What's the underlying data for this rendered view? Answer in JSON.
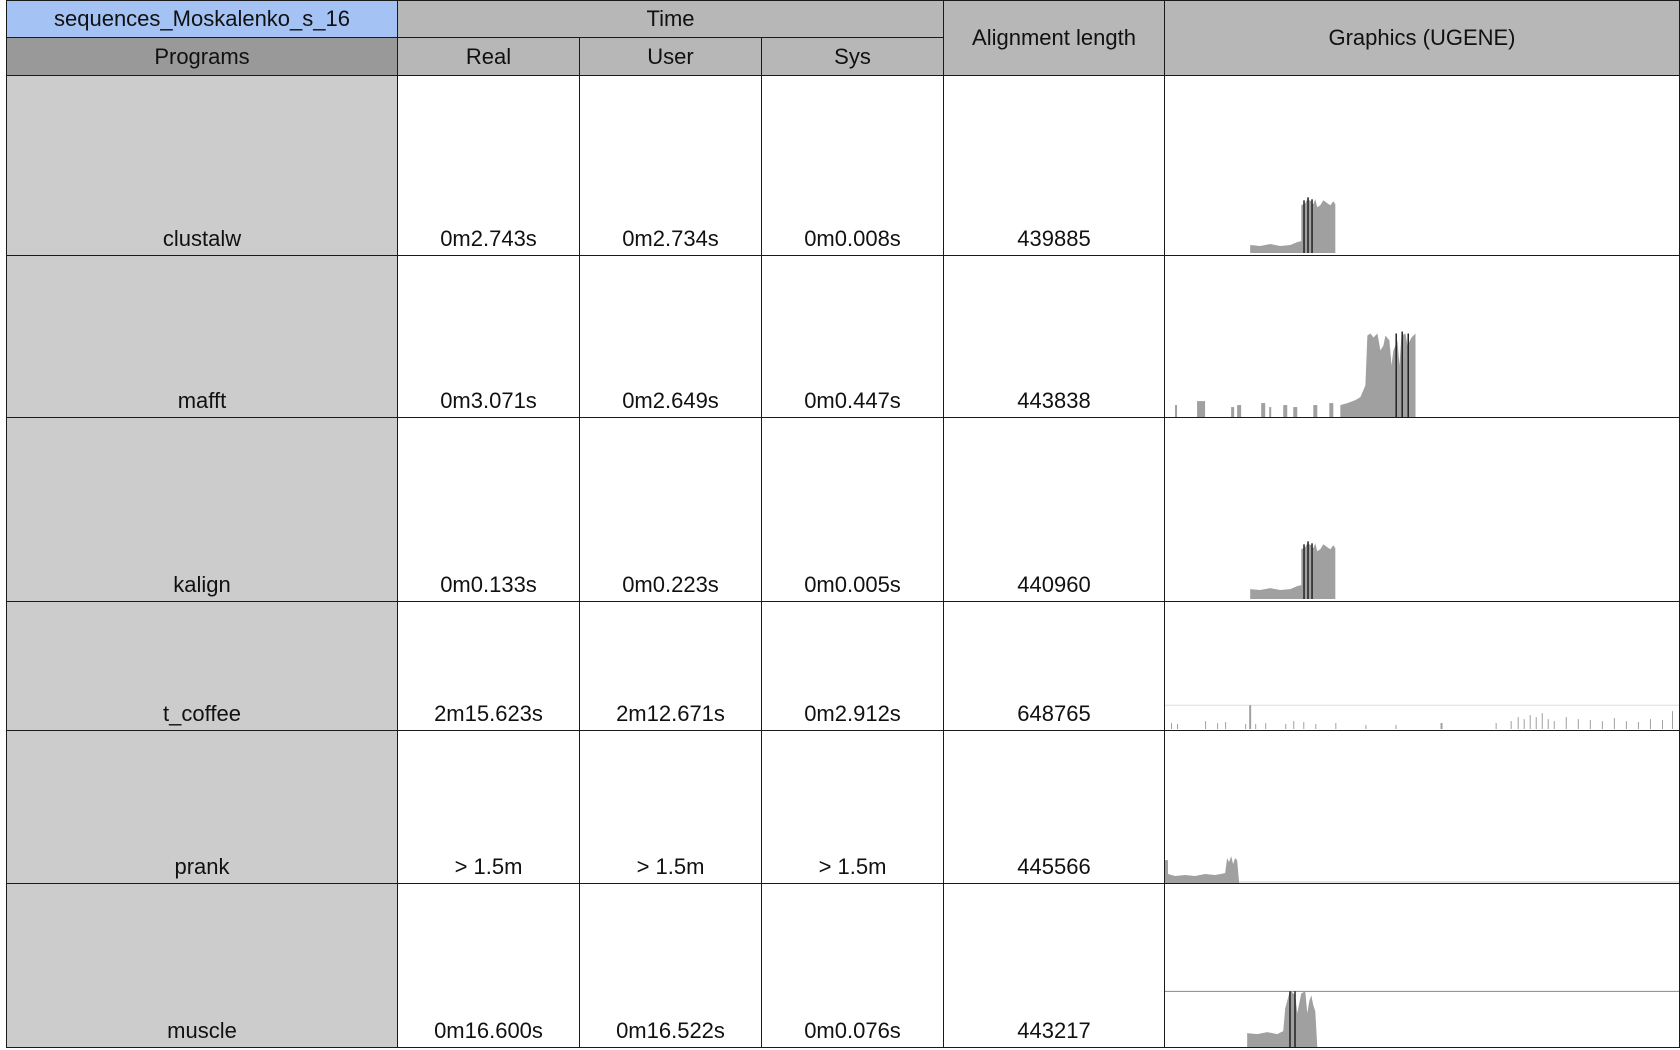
{
  "sheet": {
    "title_cell": "sequences_Moskalenko_s_16",
    "time_group_header": "Time",
    "columns": {
      "programs": "Programs",
      "real": "Real",
      "user": "User",
      "sys": "Sys",
      "alignment_length": "Alignment length",
      "graphics": "Graphics (UGENE)"
    },
    "rows": [
      {
        "program": "clustalw",
        "real": "0m2.743s",
        "user": "0m2.734s",
        "sys": "0m0.008s",
        "alignment_length": "439885",
        "graphic_icon": "ugene-alignment-profile-chart"
      },
      {
        "program": "mafft",
        "real": "0m3.071s",
        "user": "0m2.649s",
        "sys": "0m0.447s",
        "alignment_length": "443838",
        "graphic_icon": "ugene-alignment-profile-chart"
      },
      {
        "program": "kalign",
        "real": "0m0.133s",
        "user": "0m0.223s",
        "sys": "0m0.005s",
        "alignment_length": "440960",
        "graphic_icon": "ugene-alignment-profile-chart"
      },
      {
        "program": "t_coffee",
        "real": "2m15.623s",
        "user": "2m12.671s",
        "sys": "0m2.912s",
        "alignment_length": "648765",
        "graphic_icon": "ugene-alignment-profile-chart"
      },
      {
        "program": "prank",
        "real": "> 1.5m",
        "user": "> 1.5m",
        "sys": "> 1.5m",
        "alignment_length": "445566",
        "graphic_icon": "ugene-alignment-profile-chart"
      },
      {
        "program": "muscle",
        "real": "0m16.600s",
        "user": "0m16.522s",
        "sys": "0m0.076s",
        "alignment_length": "443217",
        "graphic_icon": "ugene-alignment-profile-chart"
      }
    ]
  },
  "colors": {
    "title_cell": "#a4c2f4",
    "header": "#b7b7b7",
    "header_dark": "#999999",
    "program_cell": "#cccccc",
    "chart_fill": "#a0a0a0",
    "chart_marker": "#222222"
  }
}
